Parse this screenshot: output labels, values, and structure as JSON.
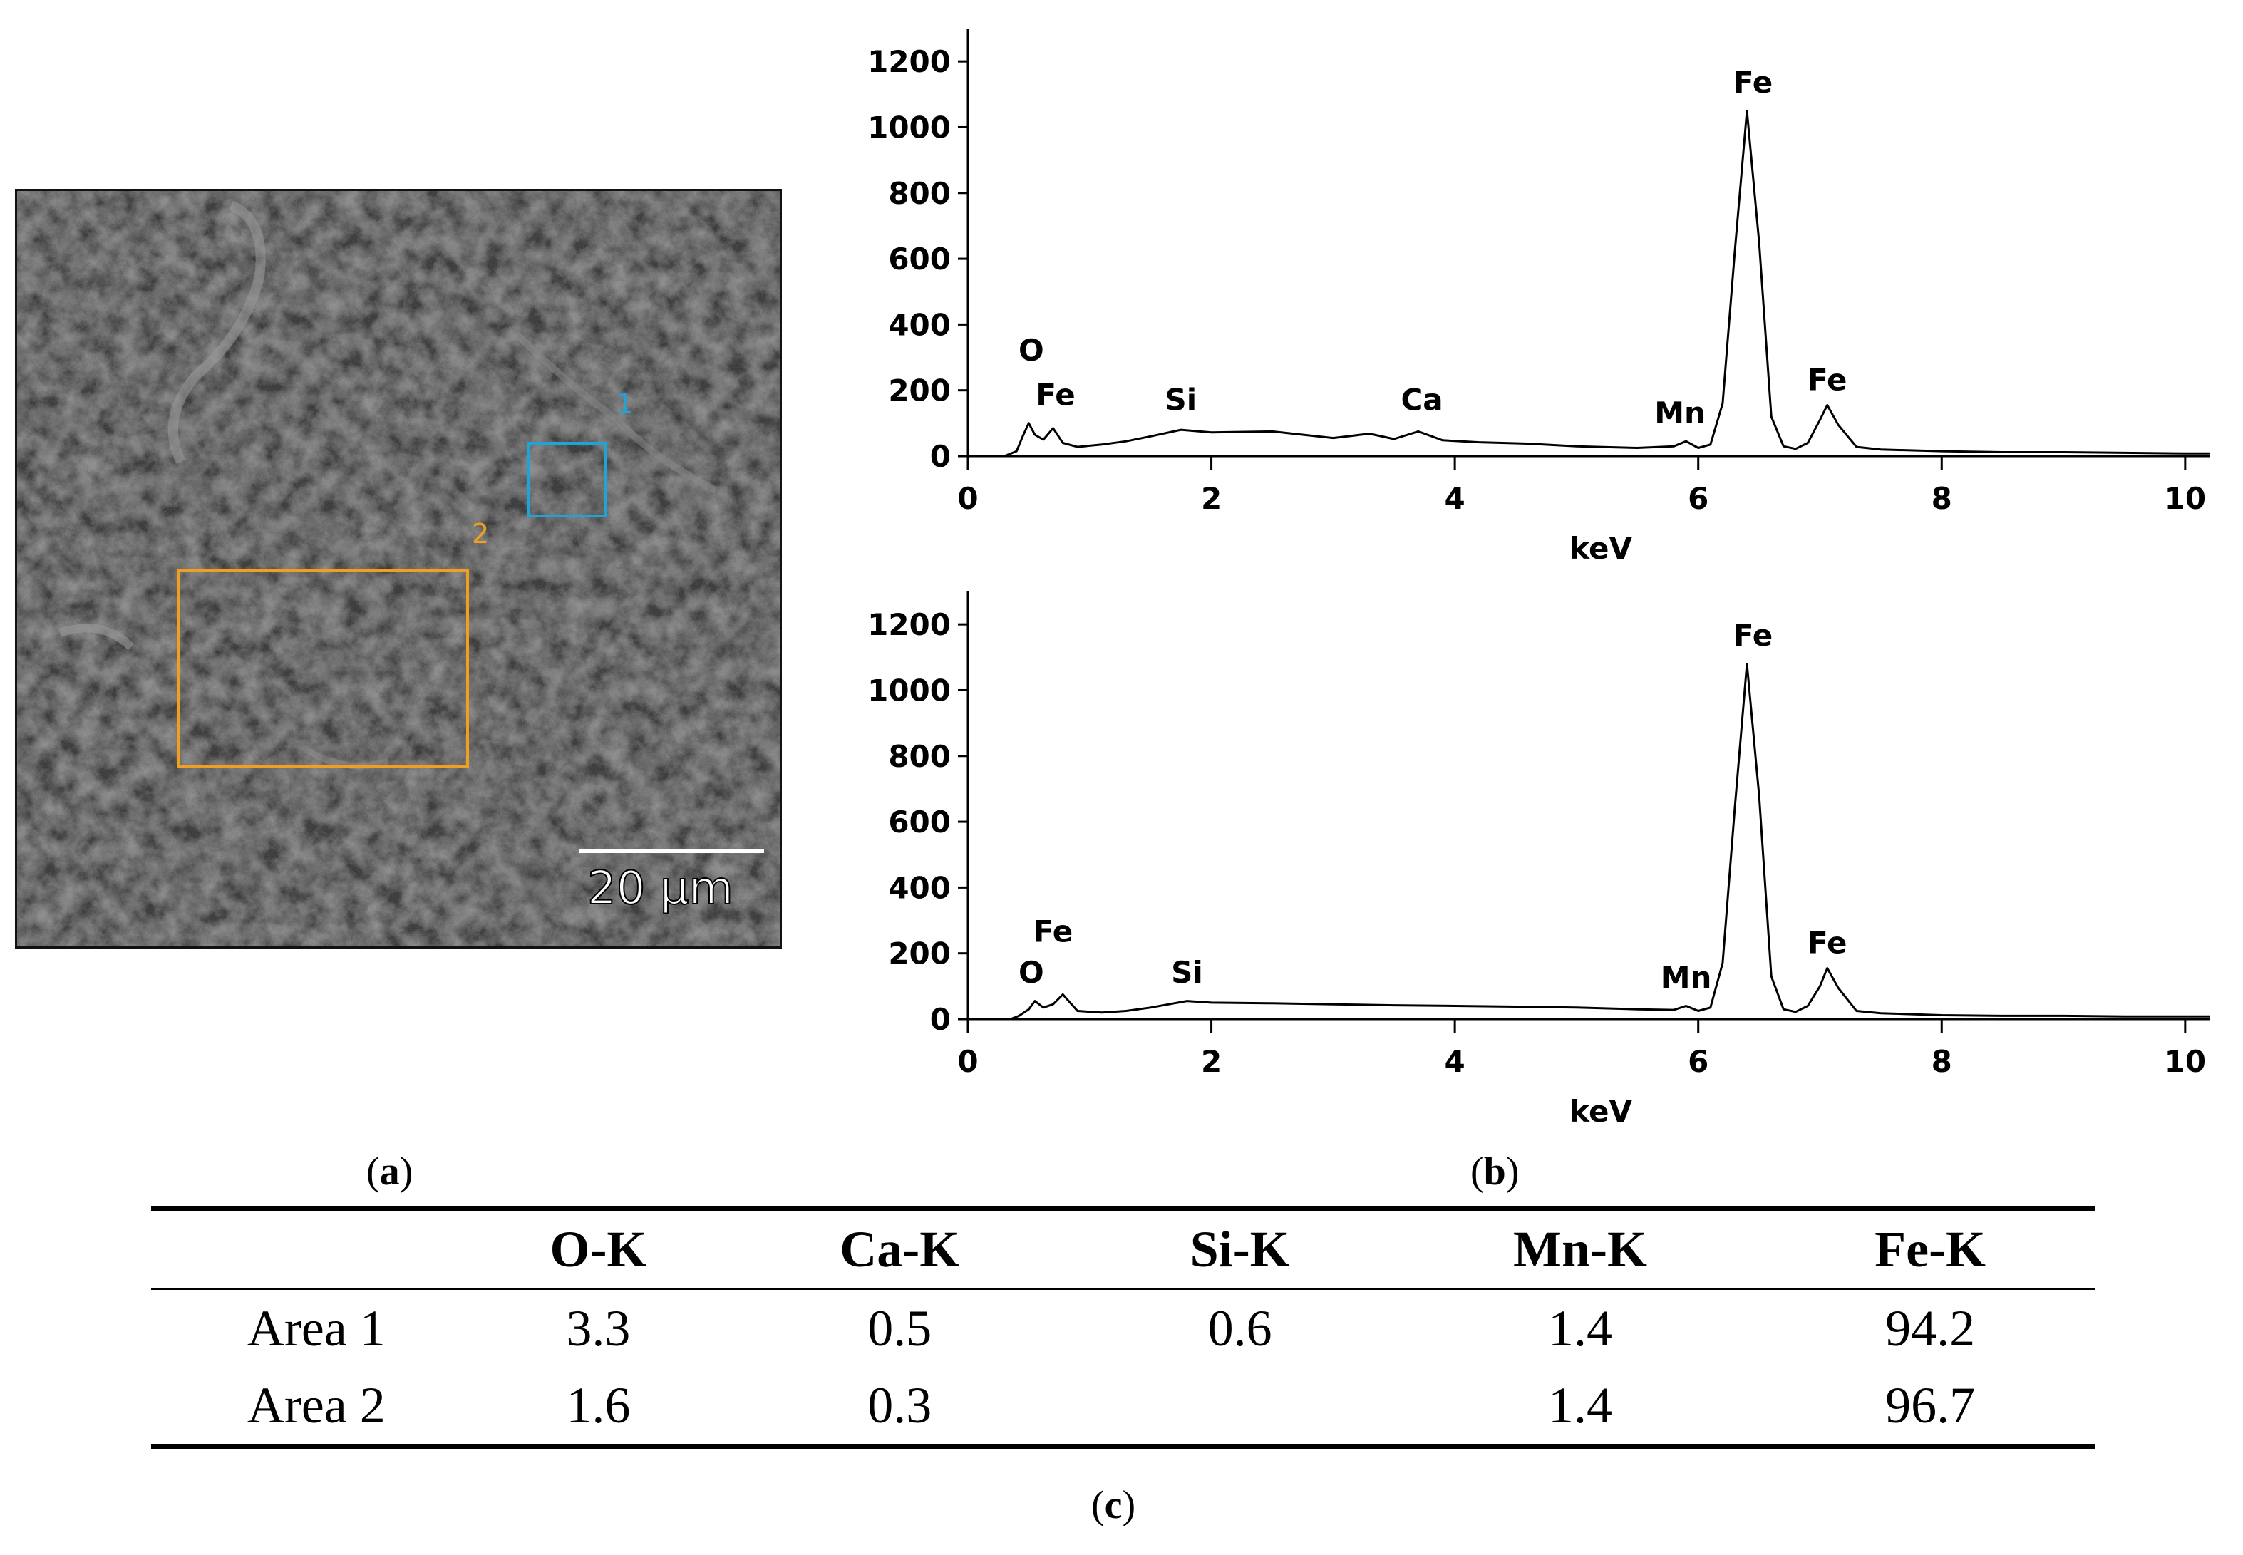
{
  "sem_image": {
    "roi_1_label": "1",
    "roi_2_label": "2",
    "roi_1_color": "#1fa3d9",
    "roi_2_color": "#f0a020",
    "scale_bar_label": "20 μm"
  },
  "panel_labels": {
    "a": "a",
    "b": "b",
    "c": "c"
  },
  "chart_data": [
    {
      "type": "line",
      "title": "",
      "xlabel": "keV",
      "ylabel": "",
      "xlim": [
        0,
        10.2
      ],
      "ylim": [
        0,
        1300
      ],
      "xticks": [
        0,
        2,
        4,
        6,
        8,
        10
      ],
      "yticks": [
        0,
        200,
        400,
        600,
        800,
        1000,
        1200
      ],
      "series": [
        {
          "x": [
            0,
            0.3,
            0.4,
            0.45,
            0.5,
            0.55,
            0.62,
            0.7,
            0.78,
            0.9,
            1.1,
            1.3,
            1.5,
            1.75,
            2.0,
            2.5,
            3.0,
            3.3,
            3.5,
            3.7,
            3.9,
            4.2,
            4.6,
            5.0,
            5.5,
            5.8,
            5.9,
            6.0,
            6.1,
            6.2,
            6.3,
            6.4,
            6.5,
            6.6,
            6.7,
            6.8,
            6.9,
            7.0,
            7.06,
            7.15,
            7.3,
            7.5,
            8.0,
            8.5,
            9.0,
            9.5,
            10.0,
            10.2
          ],
          "y": [
            0,
            0,
            15,
            60,
            100,
            65,
            50,
            85,
            40,
            28,
            35,
            45,
            60,
            80,
            72,
            75,
            55,
            68,
            52,
            75,
            48,
            42,
            38,
            30,
            25,
            30,
            45,
            25,
            35,
            160,
            620,
            1050,
            650,
            120,
            30,
            22,
            40,
            110,
            155,
            95,
            28,
            20,
            15,
            12,
            12,
            10,
            8,
            8
          ]
        }
      ],
      "annotations": [
        {
          "text": "O",
          "x": 0.52,
          "y": 290
        },
        {
          "text": "Fe",
          "x": 0.72,
          "y": 155
        },
        {
          "text": "Si",
          "x": 1.75,
          "y": 140
        },
        {
          "text": "Ca",
          "x": 3.73,
          "y": 140
        },
        {
          "text": "Mn",
          "x": 5.85,
          "y": 100
        },
        {
          "text": "Fe",
          "x": 6.45,
          "y": 1105
        },
        {
          "text": "Fe",
          "x": 7.06,
          "y": 200
        }
      ]
    },
    {
      "type": "line",
      "title": "",
      "xlabel": "keV",
      "ylabel": "",
      "xlim": [
        0,
        10.2
      ],
      "ylim": [
        0,
        1300
      ],
      "xticks": [
        0,
        2,
        4,
        6,
        8,
        10
      ],
      "yticks": [
        0,
        200,
        400,
        600,
        800,
        1000,
        1200
      ],
      "series": [
        {
          "x": [
            0,
            0.35,
            0.42,
            0.5,
            0.55,
            0.62,
            0.7,
            0.78,
            0.9,
            1.1,
            1.3,
            1.5,
            1.8,
            2.0,
            2.5,
            3.0,
            3.5,
            4.0,
            4.5,
            5.0,
            5.5,
            5.8,
            5.9,
            6.0,
            6.1,
            6.2,
            6.3,
            6.4,
            6.5,
            6.6,
            6.7,
            6.8,
            6.9,
            7.0,
            7.06,
            7.15,
            7.3,
            7.5,
            8.0,
            8.5,
            9.0,
            9.5,
            10.0,
            10.2
          ],
          "y": [
            0,
            0,
            10,
            30,
            55,
            35,
            45,
            75,
            25,
            20,
            25,
            35,
            55,
            50,
            48,
            45,
            42,
            40,
            38,
            35,
            30,
            28,
            40,
            25,
            35,
            170,
            640,
            1080,
            680,
            130,
            30,
            22,
            40,
            100,
            155,
            95,
            25,
            18,
            12,
            10,
            10,
            8,
            8,
            8
          ]
        }
      ],
      "annotations": [
        {
          "text": "Fe",
          "x": 0.7,
          "y": 235
        },
        {
          "text": "O",
          "x": 0.52,
          "y": 110
        },
        {
          "text": "Si",
          "x": 1.8,
          "y": 110
        },
        {
          "text": "Mn",
          "x": 5.9,
          "y": 95
        },
        {
          "text": "Fe",
          "x": 6.45,
          "y": 1135
        },
        {
          "text": "Fe",
          "x": 7.06,
          "y": 200
        }
      ]
    }
  ],
  "table": {
    "headers": [
      "",
      "O-K",
      "Ca-K",
      "Si-K",
      "Mn-K",
      "Fe-K"
    ],
    "rows": [
      [
        "Area 1",
        "3.3",
        "0.5",
        "0.6",
        "1.4",
        "94.2"
      ],
      [
        "Area 2",
        "1.6",
        "0.3",
        "",
        "1.4",
        "96.7"
      ]
    ]
  }
}
